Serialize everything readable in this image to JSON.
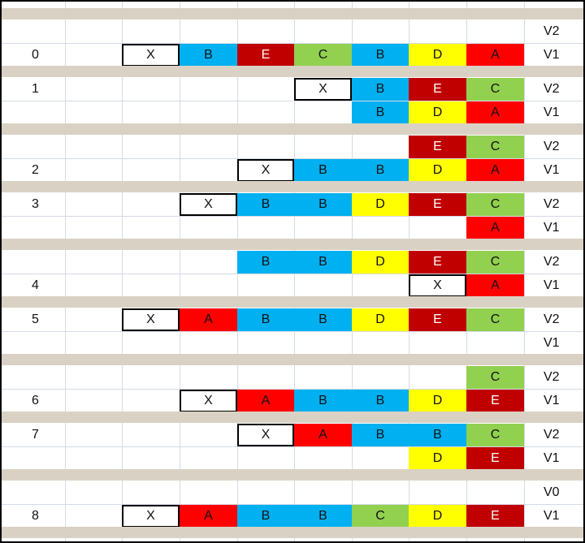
{
  "colors": {
    "X": "#ffffff",
    "A": "#ff0000",
    "B": "#00b0f0",
    "C": "#92d050",
    "D": "#ffff00",
    "E": "#c00000"
  },
  "groups": [
    {
      "index": "0",
      "top": {
        "label": "V2",
        "cells": []
      },
      "bottom": {
        "label": "V1",
        "cells": [
          {
            "col": 2,
            "l": "X"
          },
          {
            "col": 3,
            "l": "B"
          },
          {
            "col": 4,
            "l": "E"
          },
          {
            "col": 5,
            "l": "C"
          },
          {
            "col": 6,
            "l": "B"
          },
          {
            "col": 7,
            "l": "D"
          },
          {
            "col": 8,
            "l": "A"
          }
        ]
      },
      "index_row": "bottom"
    },
    {
      "index": "1",
      "top": {
        "label": "V2",
        "cells": [
          {
            "col": 5,
            "l": "X"
          },
          {
            "col": 6,
            "l": "B"
          },
          {
            "col": 7,
            "l": "E"
          },
          {
            "col": 8,
            "l": "C"
          }
        ]
      },
      "bottom": {
        "label": "V1",
        "cells": [
          {
            "col": 6,
            "l": "B"
          },
          {
            "col": 7,
            "l": "D"
          },
          {
            "col": 8,
            "l": "A"
          }
        ]
      },
      "index_row": "top"
    },
    {
      "index": "2",
      "top": {
        "label": "V2",
        "cells": [
          {
            "col": 7,
            "l": "E"
          },
          {
            "col": 8,
            "l": "C"
          }
        ]
      },
      "bottom": {
        "label": "V1",
        "cells": [
          {
            "col": 4,
            "l": "X"
          },
          {
            "col": 5,
            "l": "B"
          },
          {
            "col": 6,
            "l": "B"
          },
          {
            "col": 7,
            "l": "D"
          },
          {
            "col": 8,
            "l": "A"
          }
        ]
      },
      "index_row": "bottom"
    },
    {
      "index": "3",
      "top": {
        "label": "V2",
        "cells": [
          {
            "col": 3,
            "l": "X"
          },
          {
            "col": 4,
            "l": "B"
          },
          {
            "col": 5,
            "l": "B"
          },
          {
            "col": 6,
            "l": "D"
          },
          {
            "col": 7,
            "l": "E"
          },
          {
            "col": 8,
            "l": "C"
          }
        ]
      },
      "bottom": {
        "label": "V1",
        "cells": [
          {
            "col": 8,
            "l": "A"
          }
        ]
      },
      "index_row": "top"
    },
    {
      "index": "4",
      "top": {
        "label": "V2",
        "cells": [
          {
            "col": 4,
            "l": "B"
          },
          {
            "col": 5,
            "l": "B"
          },
          {
            "col": 6,
            "l": "D"
          },
          {
            "col": 7,
            "l": "E"
          },
          {
            "col": 8,
            "l": "C"
          }
        ]
      },
      "bottom": {
        "label": "V1",
        "cells": [
          {
            "col": 7,
            "l": "X"
          },
          {
            "col": 8,
            "l": "A"
          }
        ]
      },
      "index_row": "bottom"
    },
    {
      "index": "5",
      "top": {
        "label": "V2",
        "cells": [
          {
            "col": 2,
            "l": "X"
          },
          {
            "col": 3,
            "l": "A"
          },
          {
            "col": 4,
            "l": "B"
          },
          {
            "col": 5,
            "l": "B"
          },
          {
            "col": 6,
            "l": "D"
          },
          {
            "col": 7,
            "l": "E"
          },
          {
            "col": 8,
            "l": "C"
          }
        ]
      },
      "bottom": {
        "label": "V1",
        "cells": []
      },
      "index_row": "top"
    },
    {
      "index": "6",
      "top": {
        "label": "V2",
        "cells": [
          {
            "col": 8,
            "l": "C"
          }
        ]
      },
      "bottom": {
        "label": "V1",
        "cells": [
          {
            "col": 3,
            "l": "X"
          },
          {
            "col": 4,
            "l": "A"
          },
          {
            "col": 5,
            "l": "B"
          },
          {
            "col": 6,
            "l": "B"
          },
          {
            "col": 7,
            "l": "D"
          },
          {
            "col": 8,
            "l": "E"
          }
        ]
      },
      "index_row": "bottom"
    },
    {
      "index": "7",
      "top": {
        "label": "V2",
        "cells": [
          {
            "col": 4,
            "l": "X"
          },
          {
            "col": 5,
            "l": "A"
          },
          {
            "col": 6,
            "l": "B"
          },
          {
            "col": 7,
            "l": "B"
          },
          {
            "col": 8,
            "l": "C"
          }
        ]
      },
      "bottom": {
        "label": "V1",
        "cells": [
          {
            "col": 7,
            "l": "D"
          },
          {
            "col": 8,
            "l": "E"
          }
        ]
      },
      "index_row": "top"
    },
    {
      "index": "8",
      "top": {
        "label": "V0",
        "cells": []
      },
      "bottom": {
        "label": "V1",
        "cells": [
          {
            "col": 2,
            "l": "X"
          },
          {
            "col": 3,
            "l": "A"
          },
          {
            "col": 4,
            "l": "B"
          },
          {
            "col": 5,
            "l": "B"
          },
          {
            "col": 6,
            "l": "C"
          },
          {
            "col": 7,
            "l": "D"
          },
          {
            "col": 8,
            "l": "E"
          }
        ]
      },
      "index_row": "bottom"
    }
  ]
}
